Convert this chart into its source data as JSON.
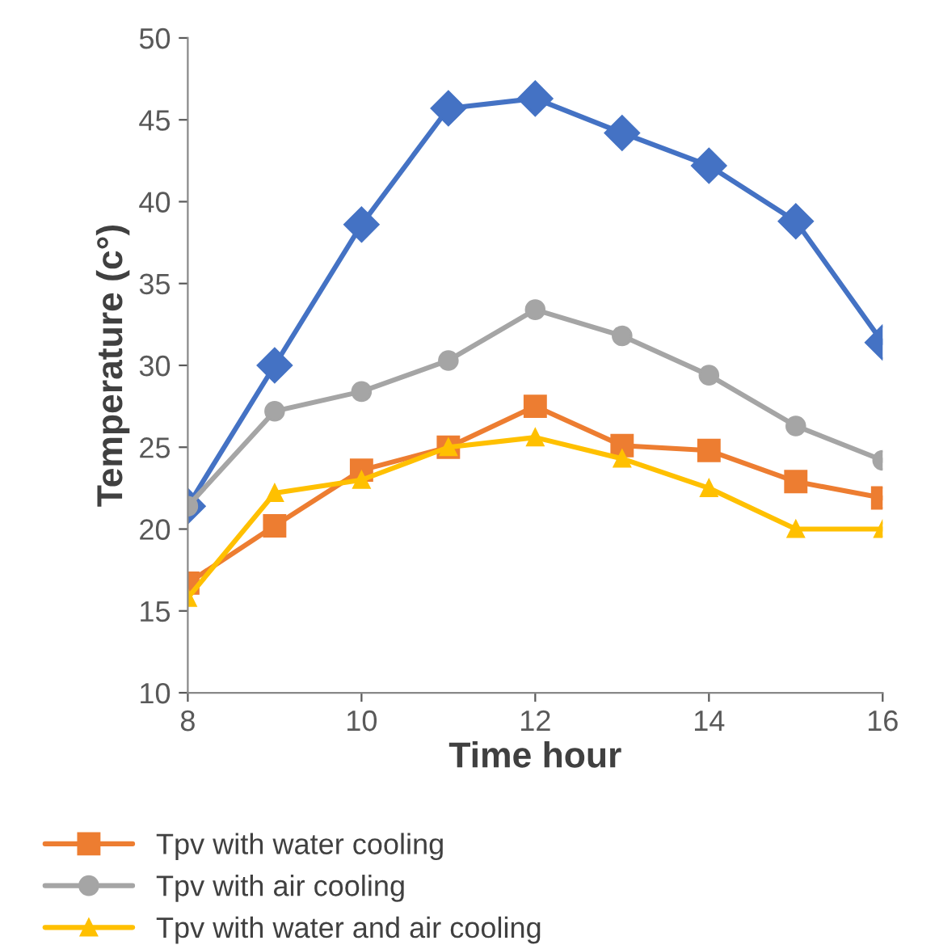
{
  "chart_data": {
    "type": "line",
    "xlabel": "Time hour",
    "ylabel": "Temperature (c°)",
    "x": [
      8,
      9,
      10,
      11,
      12,
      13,
      14,
      15,
      16
    ],
    "xlim": [
      8,
      16
    ],
    "xticks": [
      8,
      10,
      12,
      14,
      16
    ],
    "ylim": [
      10,
      50
    ],
    "yticks": [
      10,
      15,
      20,
      25,
      30,
      35,
      40,
      45,
      50
    ],
    "grid": false,
    "legend": "bottom",
    "line_style": "solid",
    "series": [
      {
        "color": "#4472c4",
        "marker": "diamond",
        "values": [
          21.4,
          30.0,
          38.6,
          45.7,
          46.3,
          44.2,
          42.2,
          38.8,
          31.4
        ]
      },
      {
        "name": "Tpv with water cooling",
        "color": "#ed7d31",
        "marker": "square",
        "values": [
          16.7,
          20.2,
          23.6,
          25.0,
          27.5,
          25.1,
          24.8,
          22.9,
          21.9
        ]
      },
      {
        "name": "Tpv with air cooling",
        "color": "#a5a5a5",
        "marker": "circle",
        "values": [
          21.4,
          27.2,
          28.4,
          30.3,
          33.4,
          31.8,
          29.4,
          26.3,
          24.2
        ]
      },
      {
        "name": "Tpv with water and air cooling",
        "color": "#ffc000",
        "marker": "triangle",
        "values": [
          15.8,
          22.2,
          23.0,
          25.0,
          25.6,
          24.3,
          22.5,
          20.0,
          20.0
        ]
      }
    ]
  }
}
